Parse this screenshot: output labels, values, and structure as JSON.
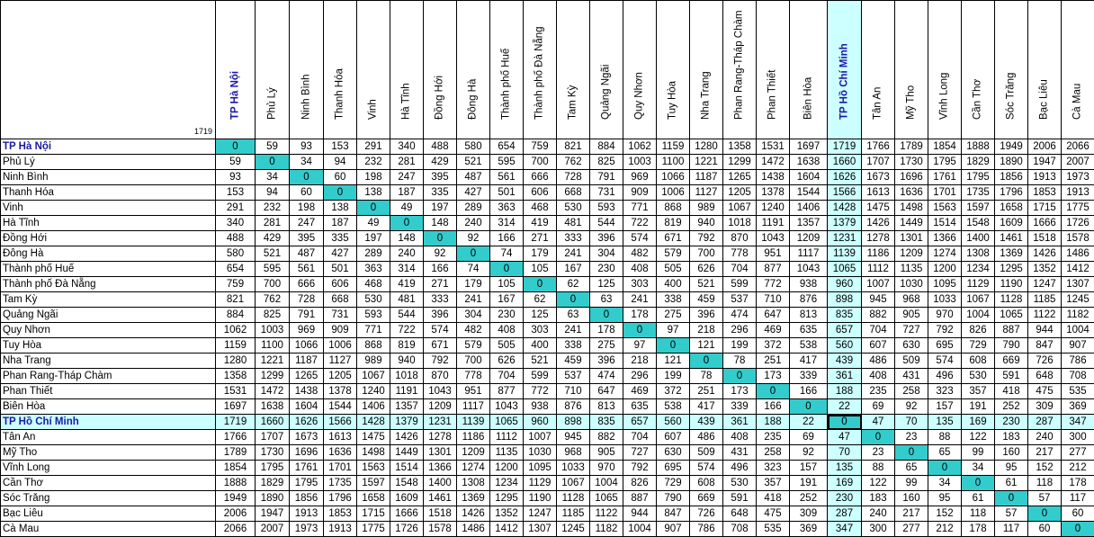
{
  "corner_value": "1719",
  "colors": {
    "highlight": "#ccffff",
    "diagonal": "#33cccc",
    "highlight_text": "#1a1aa6"
  },
  "highlighted_city": "TP Hồ Chí Minh",
  "capital": "TP Hà Nội",
  "cities": [
    "TP Hà Nội",
    "Phủ Lý",
    "Ninh Bình",
    "Thanh Hóa",
    "Vinh",
    "Hà Tĩnh",
    "Đồng Hới",
    "Đông Hà",
    "Thành phố Huế",
    "Thành phố Đà Nẵng",
    "Tam Kỳ",
    "Quảng Ngãi",
    "Quy Nhơn",
    "Tuy Hòa",
    "Nha Trang",
    "Phan Rang-Tháp Chàm",
    "Phan Thiết",
    "Biên Hòa",
    "TP Hồ Chí Minh",
    "Tân An",
    "Mỹ Tho",
    "Vĩnh Long",
    "Cần Thơ",
    "Sóc Trăng",
    "Bạc Liêu",
    "Cà Mau"
  ],
  "distances": [
    [
      "0",
      "59",
      "93",
      "153",
      "291",
      "340",
      "488",
      "580",
      "654",
      "759",
      "821",
      "884",
      "1062",
      "1159",
      "1280",
      "1358",
      "1531",
      "1697",
      "1719",
      "1766",
      "1789",
      "1854",
      "1888",
      "1949",
      "2006",
      "2066"
    ],
    [
      "59",
      "0",
      "34",
      "94",
      "232",
      "281",
      "429",
      "521",
      "595",
      "700",
      "762",
      "825",
      "1003",
      "1100",
      "1221",
      "1299",
      "1472",
      "1638",
      "1660",
      "1707",
      "1730",
      "1795",
      "1829",
      "1890",
      "1947",
      "2007"
    ],
    [
      "93",
      "34",
      "0",
      "60",
      "198",
      "247",
      "395",
      "487",
      "561",
      "666",
      "728",
      "791",
      "969",
      "1066",
      "1187",
      "1265",
      "1438",
      "1604",
      "1626",
      "1673",
      "1696",
      "1761",
      "1795",
      "1856",
      "1913",
      "1973"
    ],
    [
      "153",
      "94",
      "60",
      "0",
      "138",
      "187",
      "335",
      "427",
      "501",
      "606",
      "668",
      "731",
      "909",
      "1006",
      "1127",
      "1205",
      "1378",
      "1544",
      "1566",
      "1613",
      "1636",
      "1701",
      "1735",
      "1796",
      "1853",
      "1913"
    ],
    [
      "291",
      "232",
      "198",
      "138",
      "0",
      "49",
      "197",
      "289",
      "363",
      "468",
      "530",
      "593",
      "771",
      "868",
      "989",
      "1067",
      "1240",
      "1406",
      "1428",
      "1475",
      "1498",
      "1563",
      "1597",
      "1658",
      "1715",
      "1775"
    ],
    [
      "340",
      "281",
      "247",
      "187",
      "49",
      "0",
      "148",
      "240",
      "314",
      "419",
      "481",
      "544",
      "722",
      "819",
      "940",
      "1018",
      "1191",
      "1357",
      "1379",
      "1426",
      "1449",
      "1514",
      "1548",
      "1609",
      "1666",
      "1726"
    ],
    [
      "488",
      "429",
      "395",
      "335",
      "197",
      "148",
      "0",
      "92",
      "166",
      "271",
      "333",
      "396",
      "574",
      "671",
      "792",
      "870",
      "1043",
      "1209",
      "1231",
      "1278",
      "1301",
      "1366",
      "1400",
      "1461",
      "1518",
      "1578"
    ],
    [
      "580",
      "521",
      "487",
      "427",
      "289",
      "240",
      "92",
      "0",
      "74",
      "179",
      "241",
      "304",
      "482",
      "579",
      "700",
      "778",
      "951",
      "1117",
      "1139",
      "1186",
      "1209",
      "1274",
      "1308",
      "1369",
      "1426",
      "1486"
    ],
    [
      "654",
      "595",
      "561",
      "501",
      "363",
      "314",
      "166",
      "74",
      "0",
      "105",
      "167",
      "230",
      "408",
      "505",
      "626",
      "704",
      "877",
      "1043",
      "1065",
      "1112",
      "1135",
      "1200",
      "1234",
      "1295",
      "1352",
      "1412"
    ],
    [
      "759",
      "700",
      "666",
      "606",
      "468",
      "419",
      "271",
      "179",
      "105",
      "0",
      "62",
      "125",
      "303",
      "400",
      "521",
      "599",
      "772",
      "938",
      "960",
      "1007",
      "1030",
      "1095",
      "1129",
      "1190",
      "1247",
      "1307"
    ],
    [
      "821",
      "762",
      "728",
      "668",
      "530",
      "481",
      "333",
      "241",
      "167",
      "62",
      "0",
      "63",
      "241",
      "338",
      "459",
      "537",
      "710",
      "876",
      "898",
      "945",
      "968",
      "1033",
      "1067",
      "1128",
      "1185",
      "1245"
    ],
    [
      "884",
      "825",
      "791",
      "731",
      "593",
      "544",
      "396",
      "304",
      "230",
      "125",
      "63",
      "0",
      "178",
      "275",
      "396",
      "474",
      "647",
      "813",
      "835",
      "882",
      "905",
      "970",
      "1004",
      "1065",
      "1122",
      "1182"
    ],
    [
      "1062",
      "1003",
      "969",
      "909",
      "771",
      "722",
      "574",
      "482",
      "408",
      "303",
      "241",
      "178",
      "0",
      "97",
      "218",
      "296",
      "469",
      "635",
      "657",
      "704",
      "727",
      "792",
      "826",
      "887",
      "944",
      "1004"
    ],
    [
      "1159",
      "1100",
      "1066",
      "1006",
      "868",
      "819",
      "671",
      "579",
      "505",
      "400",
      "338",
      "275",
      "97",
      "0",
      "121",
      "199",
      "372",
      "538",
      "560",
      "607",
      "630",
      "695",
      "729",
      "790",
      "847",
      "907"
    ],
    [
      "1280",
      "1221",
      "1187",
      "1127",
      "989",
      "940",
      "792",
      "700",
      "626",
      "521",
      "459",
      "396",
      "218",
      "121",
      "0",
      "78",
      "251",
      "417",
      "439",
      "486",
      "509",
      "574",
      "608",
      "669",
      "726",
      "786"
    ],
    [
      "1358",
      "1299",
      "1265",
      "1205",
      "1067",
      "1018",
      "870",
      "778",
      "704",
      "599",
      "537",
      "474",
      "296",
      "199",
      "78",
      "0",
      "173",
      "339",
      "361",
      "408",
      "431",
      "496",
      "530",
      "591",
      "648",
      "708"
    ],
    [
      "1531",
      "1472",
      "1438",
      "1378",
      "1240",
      "1191",
      "1043",
      "951",
      "877",
      "772",
      "710",
      "647",
      "469",
      "372",
      "251",
      "173",
      "0",
      "166",
      "188",
      "235",
      "258",
      "323",
      "357",
      "418",
      "475",
      "535"
    ],
    [
      "1697",
      "1638",
      "1604",
      "1544",
      "1406",
      "1357",
      "1209",
      "1117",
      "1043",
      "938",
      "876",
      "813",
      "635",
      "538",
      "417",
      "339",
      "166",
      "0",
      "22",
      "69",
      "92",
      "157",
      "191",
      "252",
      "309",
      "369"
    ],
    [
      "1719",
      "1660",
      "1626",
      "1566",
      "1428",
      "1379",
      "1231",
      "1139",
      "1065",
      "960",
      "898",
      "835",
      "657",
      "560",
      "439",
      "361",
      "188",
      "22",
      "0",
      "47",
      "70",
      "135",
      "169",
      "230",
      "287",
      "347"
    ],
    [
      "1766",
      "1707",
      "1673",
      "1613",
      "1475",
      "1426",
      "1278",
      "1186",
      "1112",
      "1007",
      "945",
      "882",
      "704",
      "607",
      "486",
      "408",
      "235",
      "69",
      "47",
      "0",
      "23",
      "88",
      "122",
      "183",
      "240",
      "300"
    ],
    [
      "1789",
      "1730",
      "1696",
      "1636",
      "1498",
      "1449",
      "1301",
      "1209",
      "1135",
      "1030",
      "968",
      "905",
      "727",
      "630",
      "509",
      "431",
      "258",
      "92",
      "70",
      "23",
      "0",
      "65",
      "99",
      "160",
      "217",
      "277"
    ],
    [
      "1854",
      "1795",
      "1761",
      "1701",
      "1563",
      "1514",
      "1366",
      "1274",
      "1200",
      "1095",
      "1033",
      "970",
      "792",
      "695",
      "574",
      "496",
      "323",
      "157",
      "135",
      "88",
      "65",
      "0",
      "34",
      "95",
      "152",
      "212"
    ],
    [
      "1888",
      "1829",
      "1795",
      "1735",
      "1597",
      "1548",
      "1400",
      "1308",
      "1234",
      "1129",
      "1067",
      "1004",
      "826",
      "729",
      "608",
      "530",
      "357",
      "191",
      "169",
      "122",
      "99",
      "34",
      "0",
      "61",
      "118",
      "178"
    ],
    [
      "1949",
      "1890",
      "1856",
      "1796",
      "1658",
      "1609",
      "1461",
      "1369",
      "1295",
      "1190",
      "1128",
      "1065",
      "887",
      "790",
      "669",
      "591",
      "418",
      "252",
      "230",
      "183",
      "160",
      "95",
      "61",
      "0",
      "57",
      "117"
    ],
    [
      "2006",
      "1947",
      "1913",
      "1853",
      "1715",
      "1666",
      "1518",
      "1426",
      "1352",
      "1247",
      "1185",
      "1122",
      "944",
      "847",
      "726",
      "648",
      "475",
      "309",
      "287",
      "240",
      "217",
      "152",
      "118",
      "57",
      "0",
      "60"
    ],
    [
      "2066",
      "2007",
      "1973",
      "1913",
      "1775",
      "1726",
      "1578",
      "1486",
      "1412",
      "1307",
      "1245",
      "1182",
      "1004",
      "907",
      "786",
      "708",
      "535",
      "369",
      "347",
      "300",
      "277",
      "212",
      "178",
      "117",
      "60",
      "0"
    ]
  ]
}
